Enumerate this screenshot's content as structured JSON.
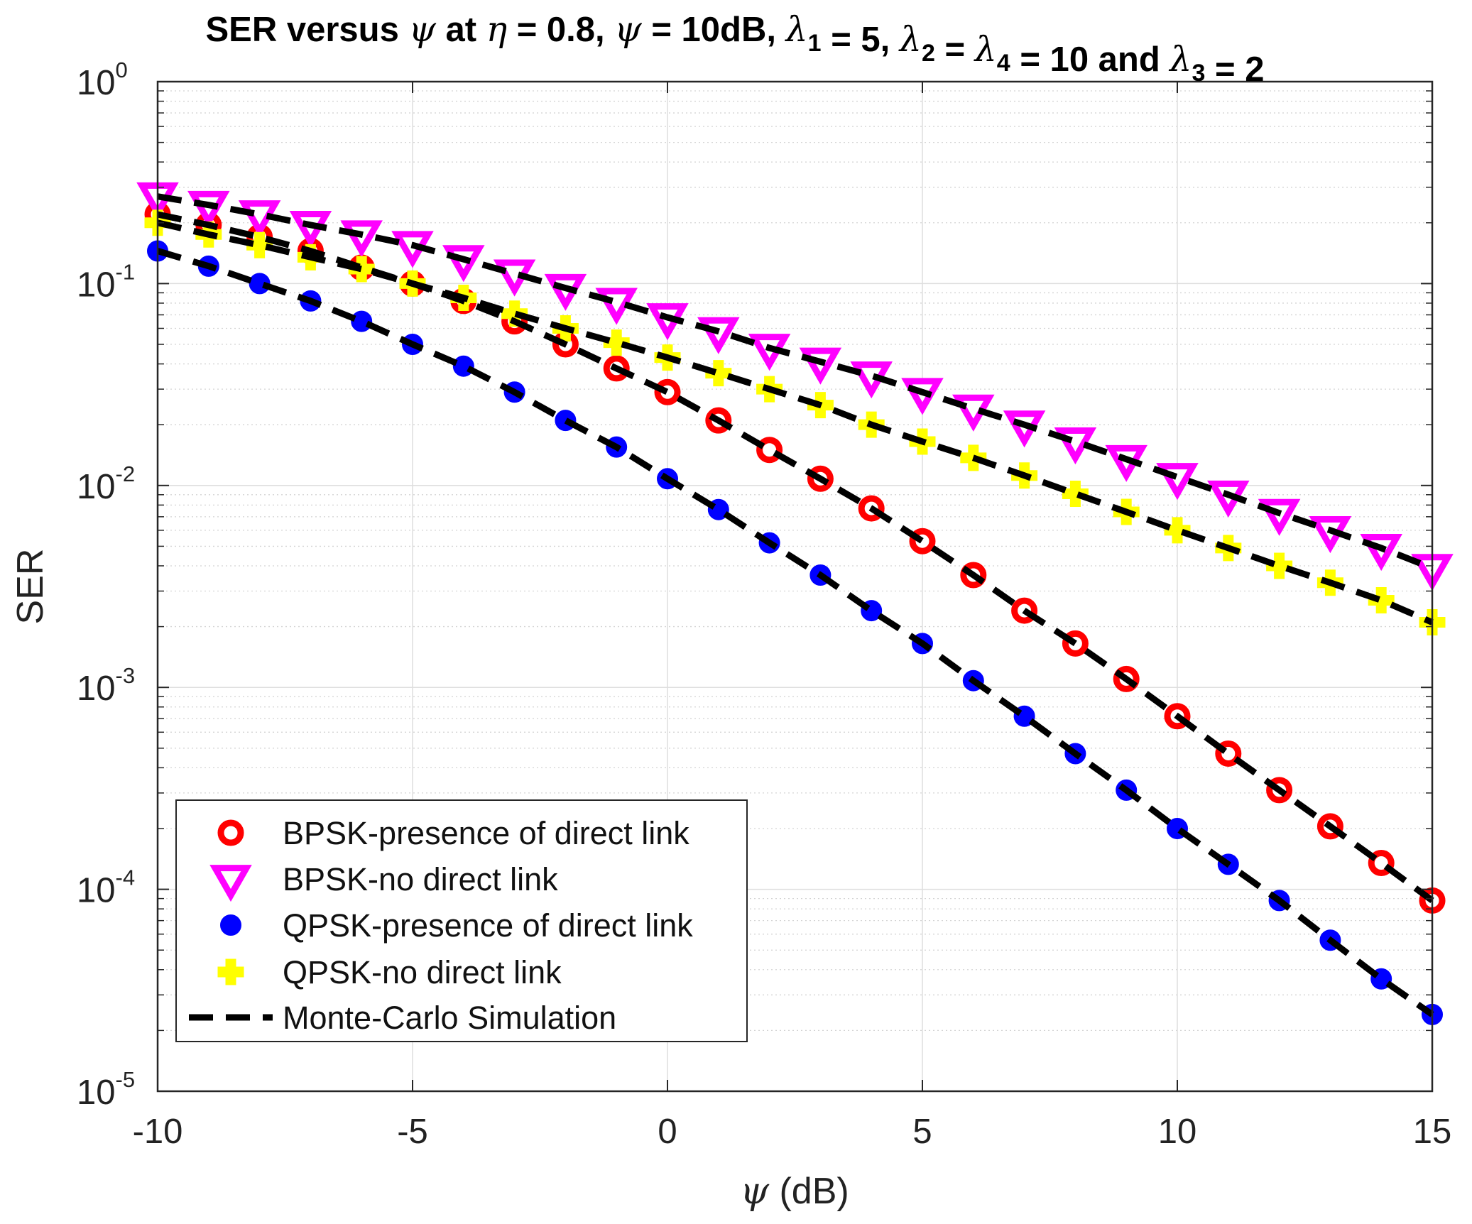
{
  "chart_data": {
    "type": "line",
    "scale_y": "log",
    "title_parts": [
      "SER versus ",
      "ψ",
      " at ",
      "η",
      " = 0.8, ",
      "ψ",
      " = 10dB, ",
      "λ",
      "1",
      " = 5, ",
      "λ",
      "2",
      " = ",
      "λ",
      "4",
      " = 10 and ",
      "λ",
      "3",
      " = 2"
    ],
    "xlabel_symbol": "ψ",
    "xlabel_text": " (dB)",
    "ylabel": "SER",
    "xlim": [
      -10,
      15
    ],
    "ylim": [
      1e-05,
      1
    ],
    "grid": true,
    "minor_grid": true,
    "x_ticks": [
      -10,
      -5,
      0,
      5,
      10,
      15
    ],
    "y_ticks": [
      {
        "value": 1e-05,
        "base": "10",
        "exp": "-5"
      },
      {
        "value": 0.0001,
        "base": "10",
        "exp": "-4"
      },
      {
        "value": 0.001,
        "base": "10",
        "exp": "-3"
      },
      {
        "value": 0.01,
        "base": "10",
        "exp": "-2"
      },
      {
        "value": 0.1,
        "base": "10",
        "exp": "-1"
      },
      {
        "value": 1,
        "base": "10",
        "exp": "0"
      }
    ],
    "x": [
      -10,
      -9,
      -8,
      -7,
      -6,
      -5,
      -4,
      -3,
      -2,
      -1,
      0,
      1,
      2,
      3,
      4,
      5,
      6,
      7,
      8,
      9,
      10,
      11,
      12,
      13,
      14,
      15
    ],
    "legend_location": "bottom-left",
    "series": [
      {
        "name": "BPSK-presence of direct link",
        "marker": "circle-open",
        "color": "#ff0000",
        "values": [
          0.22,
          0.195,
          0.17,
          0.145,
          0.12,
          0.1,
          0.082,
          0.065,
          0.05,
          0.038,
          0.029,
          0.021,
          0.015,
          0.0108,
          0.0077,
          0.0053,
          0.0036,
          0.0024,
          0.00165,
          0.0011,
          0.00072,
          0.00047,
          0.00031,
          0.000205,
          0.000135,
          8.8e-05
        ]
      },
      {
        "name": "BPSK-no direct link",
        "marker": "triangle-down",
        "color": "#ff00ff",
        "values": [
          0.27,
          0.245,
          0.22,
          0.195,
          0.175,
          0.155,
          0.132,
          0.112,
          0.095,
          0.081,
          0.068,
          0.058,
          0.048,
          0.041,
          0.035,
          0.029,
          0.024,
          0.02,
          0.0165,
          0.0135,
          0.011,
          0.009,
          0.0073,
          0.006,
          0.0049,
          0.0039
        ]
      },
      {
        "name": "QPSK-presence of direct link",
        "marker": "circle-filled",
        "color": "#0000ff",
        "values": [
          0.145,
          0.122,
          0.1,
          0.082,
          0.065,
          0.05,
          0.039,
          0.029,
          0.021,
          0.0155,
          0.0108,
          0.0076,
          0.0052,
          0.0036,
          0.0024,
          0.00165,
          0.00108,
          0.00072,
          0.00047,
          0.00031,
          0.0002,
          0.000133,
          8.8e-05,
          5.6e-05,
          3.6e-05,
          2.4e-05
        ]
      },
      {
        "name": "QPSK-no direct link",
        "marker": "plus-filled",
        "color": "#ffff00",
        "values": [
          0.2,
          0.175,
          0.155,
          0.135,
          0.118,
          0.1,
          0.085,
          0.071,
          0.06,
          0.051,
          0.043,
          0.036,
          0.03,
          0.025,
          0.02,
          0.0165,
          0.0137,
          0.0112,
          0.0091,
          0.0074,
          0.006,
          0.0049,
          0.004,
          0.0033,
          0.0027,
          0.0021
        ]
      }
    ],
    "simulation_series": {
      "name": "Monte-Carlo Simulation",
      "style": "dashed",
      "color": "#000000"
    }
  }
}
